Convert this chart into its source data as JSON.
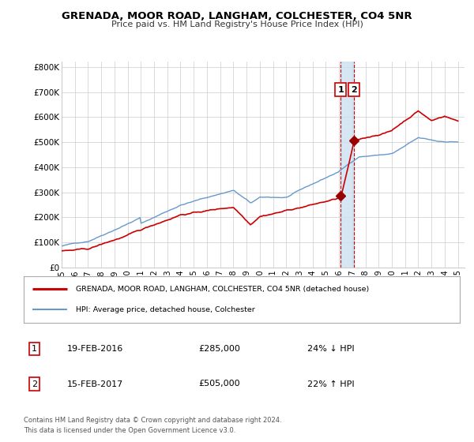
{
  "title": "GRENADA, MOOR ROAD, LANGHAM, COLCHESTER, CO4 5NR",
  "subtitle": "Price paid vs. HM Land Registry's House Price Index (HPI)",
  "legend_line1": "GRENADA, MOOR ROAD, LANGHAM, COLCHESTER, CO4 5NR (detached house)",
  "legend_line2": "HPI: Average price, detached house, Colchester",
  "transaction1_date": "19-FEB-2016",
  "transaction1_price": "£285,000",
  "transaction1_hpi": "24% ↓ HPI",
  "transaction2_date": "15-FEB-2017",
  "transaction2_price": "£505,000",
  "transaction2_hpi": "22% ↑ HPI",
  "transaction1_x": 2016.12,
  "transaction2_x": 2017.12,
  "transaction1_price_val": 285000,
  "transaction2_price_val": 505000,
  "footnote1": "Contains HM Land Registry data © Crown copyright and database right 2024.",
  "footnote2": "This data is licensed under the Open Government Licence v3.0.",
  "line_color_property": "#cc0000",
  "line_color_hpi": "#6699cc",
  "marker_color": "#990000",
  "vline_color": "#cc0000",
  "vspan_color": "#cce0f0",
  "box_color": "#cc0000",
  "ylim": [
    0,
    820000
  ],
  "xlim": [
    1995,
    2025.5
  ],
  "yticks": [
    0,
    100000,
    200000,
    300000,
    400000,
    500000,
    600000,
    700000,
    800000
  ],
  "ytick_labels": [
    "£0",
    "£100K",
    "£200K",
    "£300K",
    "£400K",
    "£500K",
    "£600K",
    "£700K",
    "£800K"
  ],
  "xticks": [
    1995,
    1996,
    1997,
    1998,
    1999,
    2000,
    2001,
    2002,
    2003,
    2004,
    2005,
    2006,
    2007,
    2008,
    2009,
    2010,
    2011,
    2012,
    2013,
    2014,
    2015,
    2016,
    2017,
    2018,
    2019,
    2020,
    2021,
    2022,
    2023,
    2024,
    2025
  ],
  "background_color": "#ffffff",
  "grid_color": "#cccccc"
}
